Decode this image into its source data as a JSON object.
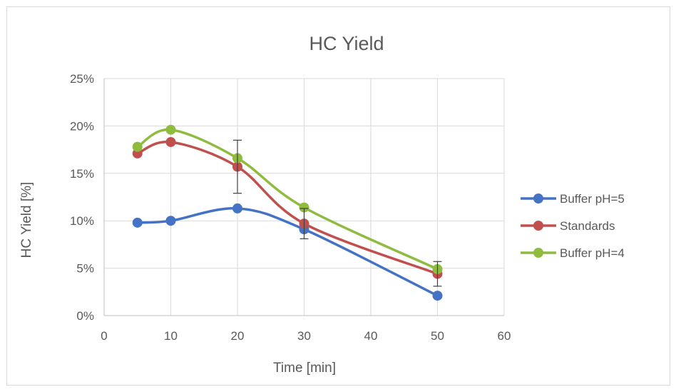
{
  "chart_data": {
    "type": "line",
    "title": "HC Yield",
    "xlabel": "Time [min]",
    "ylabel": "HC Yield [%]",
    "xlim": [
      0,
      60
    ],
    "ylim": [
      0,
      0.25
    ],
    "x_ticks": [
      0,
      10,
      20,
      30,
      40,
      50,
      60
    ],
    "x_tick_labels": [
      "0",
      "10",
      "20",
      "30",
      "40",
      "50",
      "60"
    ],
    "y_ticks": [
      0,
      0.05,
      0.1,
      0.15,
      0.2,
      0.25
    ],
    "y_tick_labels": [
      "0%",
      "5%",
      "10%",
      "15%",
      "20%",
      "25%"
    ],
    "grid": true,
    "smooth": true,
    "legend_position": "right",
    "series": [
      {
        "name": "Buffer pH=5",
        "color": "#4472c4",
        "x": [
          5,
          10,
          20,
          30,
          50
        ],
        "y": [
          0.098,
          0.1,
          0.113,
          0.091,
          0.021
        ]
      },
      {
        "name": "Standards",
        "color": "#c0504d",
        "x": [
          5,
          10,
          20,
          30,
          50
        ],
        "y": [
          0.171,
          0.183,
          0.157,
          0.097,
          0.044
        ],
        "error": [
          0,
          0,
          0.028,
          0.016,
          0.013
        ]
      },
      {
        "name": "Buffer pH=4",
        "color": "#8fbc3e",
        "x": [
          5,
          10,
          20,
          30,
          50
        ],
        "y": [
          0.178,
          0.196,
          0.166,
          0.114,
          0.049
        ]
      }
    ]
  }
}
